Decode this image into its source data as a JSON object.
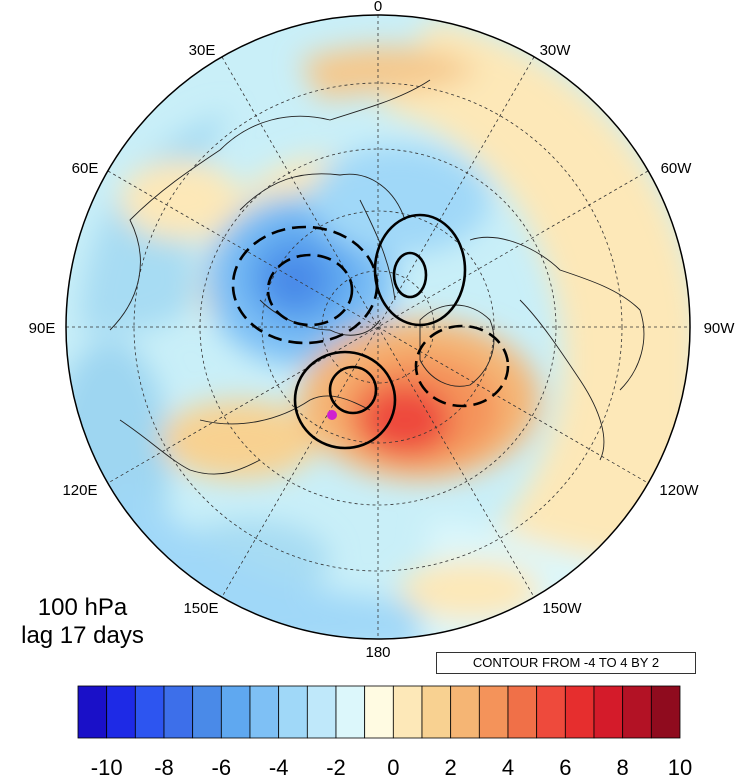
{
  "title_level": "100 hPa",
  "title_lag": "lag 17 days",
  "contour_info": "CONTOUR FROM -4 TO 4 BY 2",
  "projection": "north-polar-stereographic",
  "longitude_labels": [
    {
      "id": "lon-0",
      "text": "0"
    },
    {
      "id": "lon-30w",
      "text": "30W"
    },
    {
      "id": "lon-60w",
      "text": "60W"
    },
    {
      "id": "lon-90w",
      "text": "90W"
    },
    {
      "id": "lon-120w",
      "text": "120W"
    },
    {
      "id": "lon-150w",
      "text": "150W"
    },
    {
      "id": "lon-180",
      "text": "180"
    },
    {
      "id": "lon-150e",
      "text": "150E"
    },
    {
      "id": "lon-120e",
      "text": "120E"
    },
    {
      "id": "lon-90e",
      "text": "90E"
    },
    {
      "id": "lon-60e",
      "text": "60E"
    },
    {
      "id": "lon-30e",
      "text": "30E"
    }
  ],
  "colorbar": {
    "colors": [
      "#1a10c8",
      "#1e2ae6",
      "#2d55f0",
      "#3d6fea",
      "#4a8ae8",
      "#5fa8f0",
      "#7ec0f5",
      "#a0d8f8",
      "#bfe8fa",
      "#dcf7fb",
      "#fffbe2",
      "#fde8b8",
      "#f8d191",
      "#f5b574",
      "#f4935a",
      "#f07048",
      "#ee4a3c",
      "#e62e2e",
      "#d41b2a",
      "#b31225",
      "#8f0b1e"
    ],
    "tick_labels": [
      "-10",
      "-8",
      "-6",
      "-4",
      "-2",
      "0",
      "2",
      "4",
      "6",
      "8",
      "10"
    ]
  },
  "field": {
    "colors": {
      "ocean_base": "#dcf7fb",
      "land": "none",
      "marker": "#d020d0"
    }
  }
}
